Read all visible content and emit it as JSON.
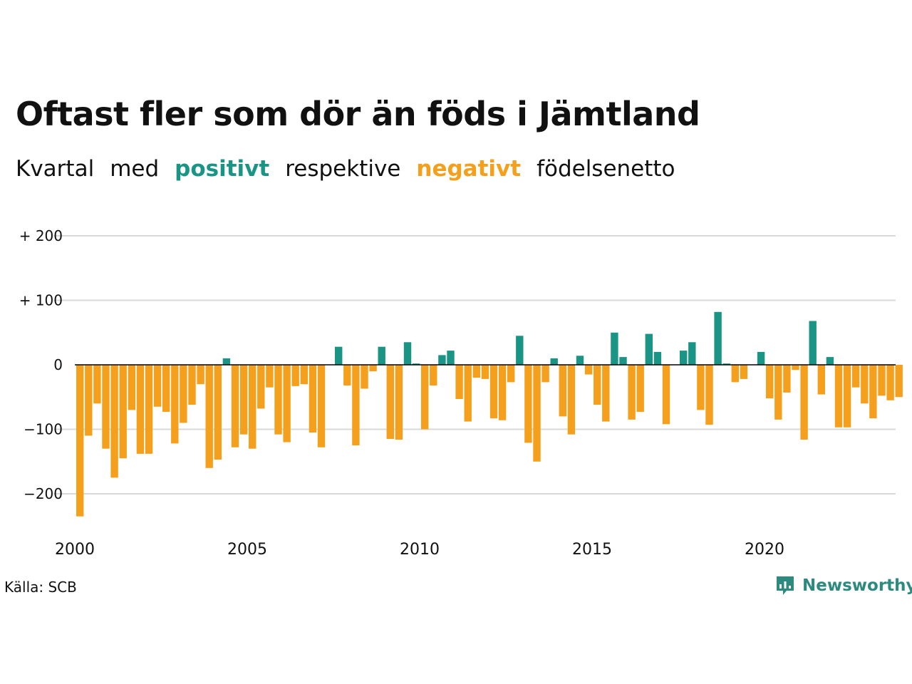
{
  "header": {
    "title": "Oftast fler som dör än föds i Jämtland",
    "subtitle_words": [
      "Kvartal",
      "med",
      "positivt",
      "respektive",
      "negativt",
      "födelsenetto"
    ]
  },
  "colors": {
    "positive": "#1a9485",
    "negative": "#f5a01d",
    "grid": "#d9d9d9",
    "baseline": "#000000",
    "brand": "#2d8a7e"
  },
  "footer": {
    "source": "Källa: SCB",
    "brand": "Newsworthy",
    "brand_icon": "bar-chart-speech-icon"
  },
  "chart_data": {
    "type": "bar",
    "title": "Oftast fler som dör än föds i Jämtland",
    "subtitle": "Kvartal med positivt respektive negativt födelsenetto",
    "xlabel": "",
    "ylabel": "",
    "ylim": [
      -240,
      200
    ],
    "y_ticks": [
      200,
      100,
      0,
      -100,
      -200
    ],
    "y_tick_labels": [
      "+ 200",
      "+ 100",
      "0",
      "−100",
      "−200"
    ],
    "x_ticks": [
      2000,
      2005,
      2010,
      2015,
      2020
    ],
    "x_tick_labels": [
      "2000",
      "2005",
      "2010",
      "2015",
      "2020"
    ],
    "grid": true,
    "first_period": "2000 Q1",
    "periods_per_year": 4,
    "values": [
      -235,
      -110,
      -60,
      -130,
      -175,
      -145,
      -70,
      -138,
      -138,
      -65,
      -73,
      -122,
      -90,
      -62,
      -30,
      -160,
      -147,
      10,
      -128,
      -108,
      -130,
      -68,
      -35,
      -108,
      -120,
      -33,
      -30,
      -105,
      -128,
      0,
      28,
      -32,
      -125,
      -37,
      -10,
      28,
      -115,
      -116,
      35,
      2,
      -100,
      -32,
      15,
      22,
      -53,
      -88,
      -20,
      -22,
      -83,
      -86,
      -27,
      45,
      -121,
      -150,
      -27,
      10,
      -80,
      -108,
      14,
      -15,
      -62,
      -88,
      50,
      12,
      -85,
      -73,
      48,
      20,
      -92,
      0,
      22,
      35,
      -70,
      -93,
      82,
      2,
      -27,
      -22,
      0,
      20,
      -52,
      -85,
      -43,
      -8,
      -116,
      68,
      -46,
      12,
      -97,
      -97,
      -35,
      -60,
      -83,
      -48,
      -55,
      -50
    ]
  }
}
